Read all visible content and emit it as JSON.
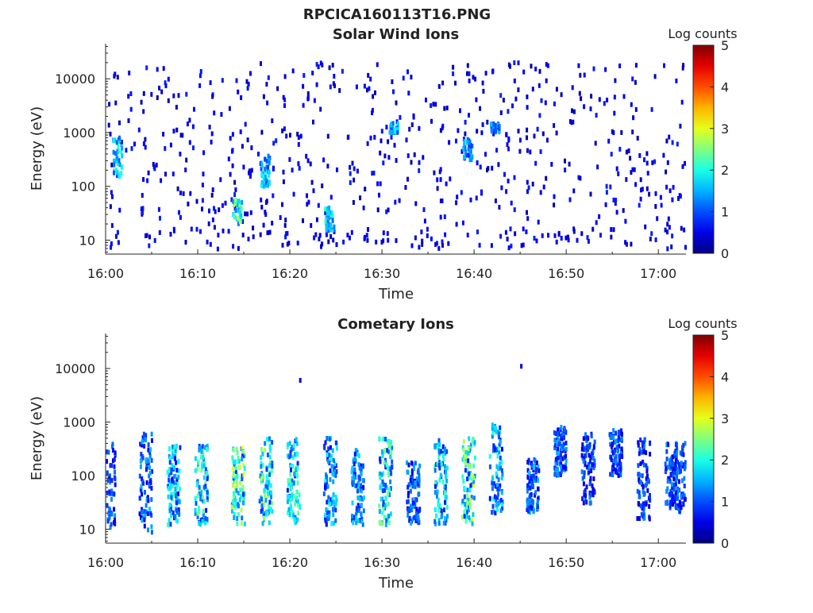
{
  "figure_title": "RPCICA160113T16.PNG",
  "chart_data": [
    {
      "type": "heatmap",
      "title": "Solar Wind Ions",
      "xlabel": "Time",
      "ylabel": "Energy (eV)",
      "x_range": [
        "16:00",
        "17:03"
      ],
      "x_ticks": [
        "16:00",
        "16:10",
        "16:20",
        "16:30",
        "16:40",
        "16:50",
        "17:00"
      ],
      "y_scale": "log",
      "y_range_eV": [
        5.5,
        45000
      ],
      "y_ticks": [
        "10",
        "100",
        "1000",
        "10000"
      ],
      "y_tick_values": [
        10,
        100,
        1000,
        10000
      ],
      "colorbar": {
        "label": "Log counts",
        "range": [
          0,
          5
        ],
        "ticks": [
          "0",
          "1",
          "2",
          "3",
          "4",
          "5"
        ],
        "colormap": "jet"
      },
      "features": [
        {
          "time": "16:01",
          "energy_eV": [
            150,
            800
          ],
          "log_counts": 2.0
        },
        {
          "time": "16:14",
          "energy_eV": [
            20,
            60
          ],
          "log_counts": 2.5
        },
        {
          "time": "16:17",
          "energy_eV": [
            100,
            400
          ],
          "log_counts": 1.8
        },
        {
          "time": "16:24",
          "energy_eV": [
            15,
            40
          ],
          "log_counts": 2.0
        },
        {
          "time": "16:31",
          "energy_eV": [
            1000,
            1500
          ],
          "log_counts": 1.8
        },
        {
          "time": "16:39",
          "energy_eV": [
            300,
            800
          ],
          "log_counts": 1.5
        },
        {
          "time": "16:42",
          "energy_eV": [
            1000,
            1500
          ],
          "log_counts": 1.5
        }
      ],
      "background_counts": "sparse scattered pixels 0-1 log counts across 10-20000 eV"
    },
    {
      "type": "heatmap",
      "title": "Cometary Ions",
      "xlabel": "Time",
      "ylabel": "Energy (eV)",
      "x_range": [
        "16:00",
        "17:03"
      ],
      "x_ticks": [
        "16:00",
        "16:10",
        "16:20",
        "16:30",
        "16:40",
        "16:50",
        "17:00"
      ],
      "y_scale": "log",
      "y_range_eV": [
        5.5,
        45000
      ],
      "y_ticks": [
        "10",
        "100",
        "1000",
        "10000"
      ],
      "y_tick_values": [
        10,
        100,
        1000,
        10000
      ],
      "colorbar": {
        "label": "Log counts",
        "range": [
          0,
          5
        ],
        "ticks": [
          "0",
          "1",
          "2",
          "3",
          "4",
          "5"
        ],
        "colormap": "jet"
      },
      "bursts": [
        {
          "time": "16:00",
          "energy_eV": [
            10,
            400
          ],
          "log_counts": 1.3
        },
        {
          "time": "16:04",
          "energy_eV": [
            8,
            600
          ],
          "log_counts": 1.5
        },
        {
          "time": "16:07",
          "energy_eV": [
            12,
            400
          ],
          "log_counts": 2.0
        },
        {
          "time": "16:10",
          "energy_eV": [
            12,
            400
          ],
          "log_counts": 2.3
        },
        {
          "time": "16:14",
          "energy_eV": [
            12,
            350
          ],
          "log_counts": 2.8
        },
        {
          "time": "16:17",
          "energy_eV": [
            12,
            500
          ],
          "log_counts": 2.5
        },
        {
          "time": "16:20",
          "energy_eV": [
            12,
            500
          ],
          "log_counts": 2.2
        },
        {
          "time": "16:24",
          "energy_eV": [
            12,
            500
          ],
          "log_counts": 1.8
        },
        {
          "time": "16:27",
          "energy_eV": [
            12,
            350
          ],
          "log_counts": 1.6
        },
        {
          "time": "16:30",
          "energy_eV": [
            12,
            500
          ],
          "log_counts": 2.4
        },
        {
          "time": "16:33",
          "energy_eV": [
            12,
            200
          ],
          "log_counts": 1.4
        },
        {
          "time": "16:36",
          "energy_eV": [
            12,
            500
          ],
          "log_counts": 2.2
        },
        {
          "time": "16:39",
          "energy_eV": [
            12,
            500
          ],
          "log_counts": 2.7
        },
        {
          "time": "16:42",
          "energy_eV": [
            20,
            900
          ],
          "log_counts": 2.0
        },
        {
          "time": "16:46",
          "energy_eV": [
            20,
            200
          ],
          "log_counts": 1.5
        },
        {
          "time": "16:49",
          "energy_eV": [
            100,
            800
          ],
          "log_counts": 1.4
        },
        {
          "time": "16:52",
          "energy_eV": [
            30,
            600
          ],
          "log_counts": 1.2
        },
        {
          "time": "16:55",
          "energy_eV": [
            100,
            700
          ],
          "log_counts": 1.3
        },
        {
          "time": "16:58",
          "energy_eV": [
            15,
            500
          ],
          "log_counts": 1.2
        },
        {
          "time": "17:01",
          "energy_eV": [
            25,
            400
          ],
          "log_counts": 1.3
        },
        {
          "time": "17:02",
          "energy_eV": [
            20,
            400
          ],
          "log_counts": 1.2
        }
      ],
      "isolated_points": [
        {
          "time": "16:45",
          "energy_eV": 11000,
          "log_counts": 0.5
        },
        {
          "time": "16:21",
          "energy_eV": 6000,
          "log_counts": 0.5
        }
      ]
    }
  ]
}
